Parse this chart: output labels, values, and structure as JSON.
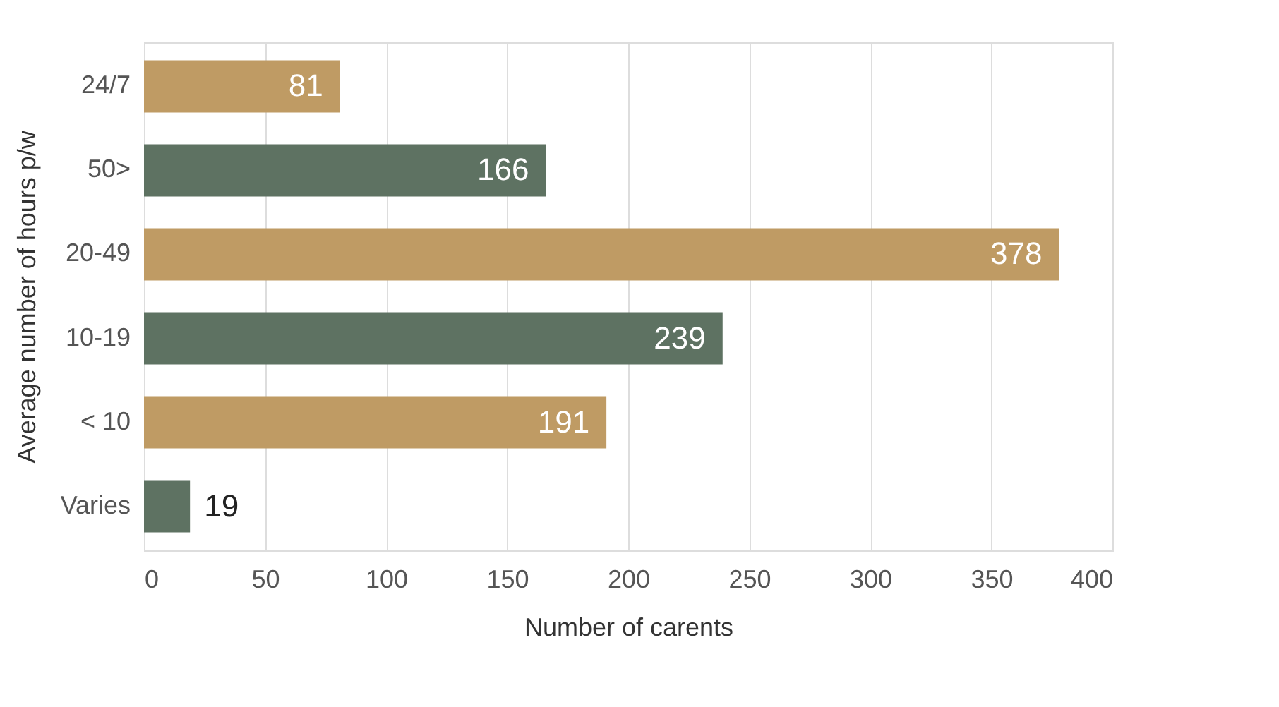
{
  "chart_data": {
    "type": "bar",
    "orientation": "horizontal",
    "xlabel": "Number of carents",
    "ylabel": "Average number of hours p/w",
    "categories": [
      "24/7",
      "50>",
      "20-49",
      "10-19",
      "< 10",
      "Varies"
    ],
    "values": [
      81,
      166,
      378,
      239,
      191,
      19
    ],
    "colors": [
      "#bf9b64",
      "#5e7262",
      "#bf9b64",
      "#5e7262",
      "#bf9b64",
      "#5e7262"
    ],
    "xlim": [
      0,
      400
    ],
    "xticks": [
      0,
      50,
      100,
      150,
      200,
      250,
      300,
      350,
      400
    ],
    "grid": "x",
    "data_labels": true
  }
}
